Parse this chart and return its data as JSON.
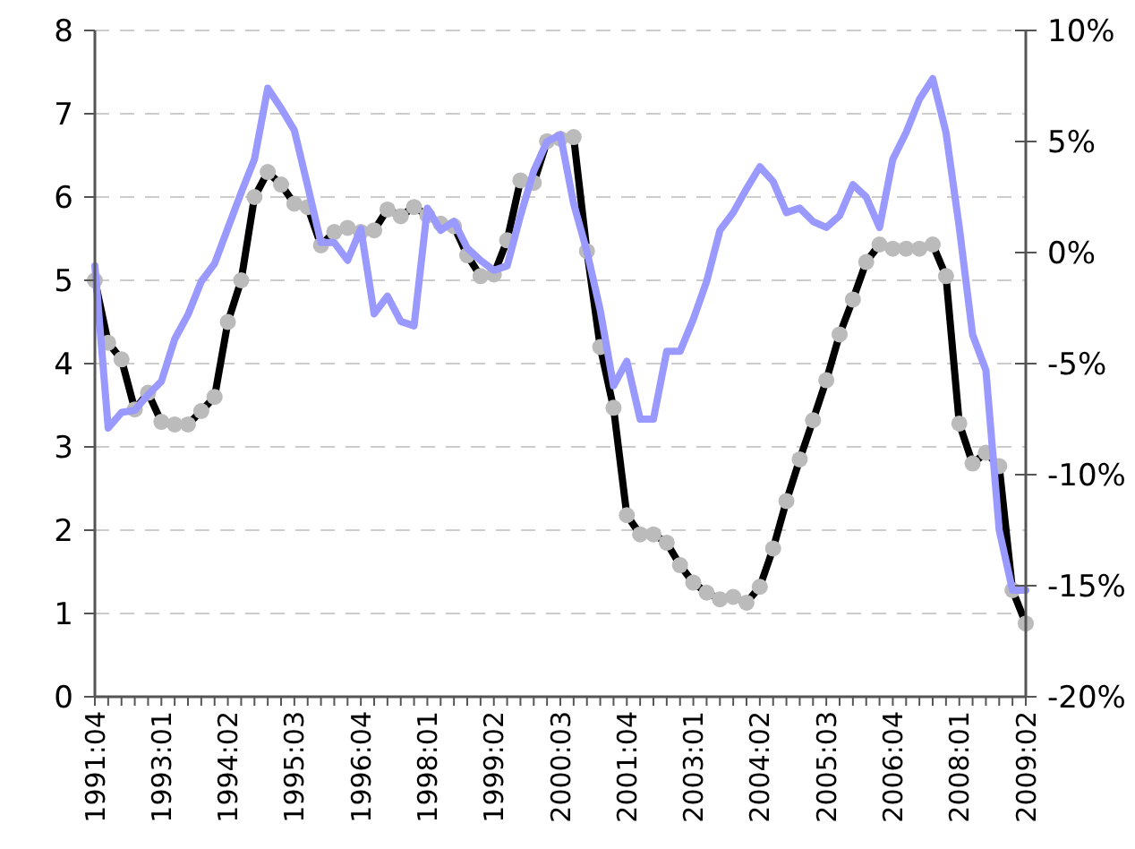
{
  "chart_data": {
    "type": "line",
    "categories": [
      "1991:04",
      null,
      null,
      null,
      null,
      "1993:01",
      null,
      null,
      null,
      null,
      "1994:02",
      null,
      null,
      null,
      null,
      "1995:03",
      null,
      null,
      null,
      null,
      "1996:04",
      null,
      null,
      null,
      null,
      "1998:01",
      null,
      null,
      null,
      null,
      "1999:02",
      null,
      null,
      null,
      null,
      "2000:03",
      null,
      null,
      null,
      null,
      "2001:04",
      null,
      null,
      null,
      null,
      "2003:01",
      null,
      null,
      null,
      null,
      "2004:02",
      null,
      null,
      null,
      null,
      "2005:03",
      null,
      null,
      null,
      null,
      "2006:04",
      null,
      null,
      null,
      null,
      "2008:01",
      null,
      null,
      null,
      null,
      "2009:02"
    ],
    "series": [
      {
        "color": "#000000",
        "marker": "circle",
        "values": [
          5.0,
          4.25,
          4.05,
          3.45,
          3.65,
          3.3,
          3.27,
          3.27,
          3.43,
          3.6,
          4.5,
          5.0,
          6.0,
          6.3,
          6.15,
          5.92,
          5.88,
          5.42,
          5.58,
          5.63,
          5.58,
          5.6,
          5.85,
          5.77,
          5.88,
          5.78,
          5.68,
          5.65,
          5.3,
          5.05,
          5.07,
          5.48,
          6.2,
          6.17,
          6.67,
          6.7,
          6.72,
          5.35,
          4.2,
          3.47,
          2.18,
          1.95,
          1.95,
          1.85,
          1.58,
          1.37,
          1.25,
          1.17,
          1.2,
          1.13,
          1.32,
          1.78,
          2.35,
          2.85,
          3.32,
          3.8,
          4.35,
          4.77,
          5.22,
          5.43,
          5.38,
          5.38,
          5.38,
          5.43,
          5.05,
          3.28,
          2.8,
          2.93,
          2.77,
          1.28,
          0.88
        ]
      },
      {
        "color": "#9999ff",
        "marker": "none",
        "axis": "y2",
        "values": [
          -0.6,
          -7.9,
          -7.2,
          -7.1,
          -6.4,
          -5.8,
          -3.9,
          -2.8,
          -1.3,
          -0.5,
          1.1,
          2.7,
          4.2,
          7.4,
          6.5,
          5.5,
          3.0,
          0.45,
          0.45,
          -0.35,
          1.07,
          -2.76,
          -1.96,
          -3.1,
          -3.3,
          2.0,
          1.0,
          1.4,
          0.2,
          -0.35,
          -0.8,
          -0.6,
          1.66,
          3.67,
          5.0,
          5.3,
          2.2,
          0.05,
          -2.6,
          -6.0,
          -4.9,
          -7.5,
          -7.5,
          -4.45,
          -4.45,
          -3.0,
          -1.3,
          1.0,
          1.8,
          2.87,
          3.86,
          3.2,
          1.8,
          2.0,
          1.4,
          1.13,
          1.66,
          3.06,
          2.5,
          1.13,
          4.2,
          5.4,
          6.9,
          7.83,
          5.4,
          1.13,
          -3.7,
          -5.3,
          -12.5,
          -15.2,
          -15.2
        ]
      }
    ],
    "ylim": [
      0,
      8
    ],
    "yticks": [
      0,
      1,
      2,
      3,
      4,
      5,
      6,
      7,
      8
    ],
    "y2lim": [
      -20,
      10
    ],
    "y2ticks": [
      {
        "value": -20,
        "label": "-20%"
      },
      {
        "value": -15,
        "label": "-15%"
      },
      {
        "value": -10,
        "label": "-10%"
      },
      {
        "value": -5,
        "label": "-5%"
      },
      {
        "value": 0,
        "label": "0%"
      },
      {
        "value": 5,
        "label": "5%"
      },
      {
        "value": 10,
        "label": "10%"
      }
    ],
    "grid": "y",
    "line_style": "solid"
  }
}
